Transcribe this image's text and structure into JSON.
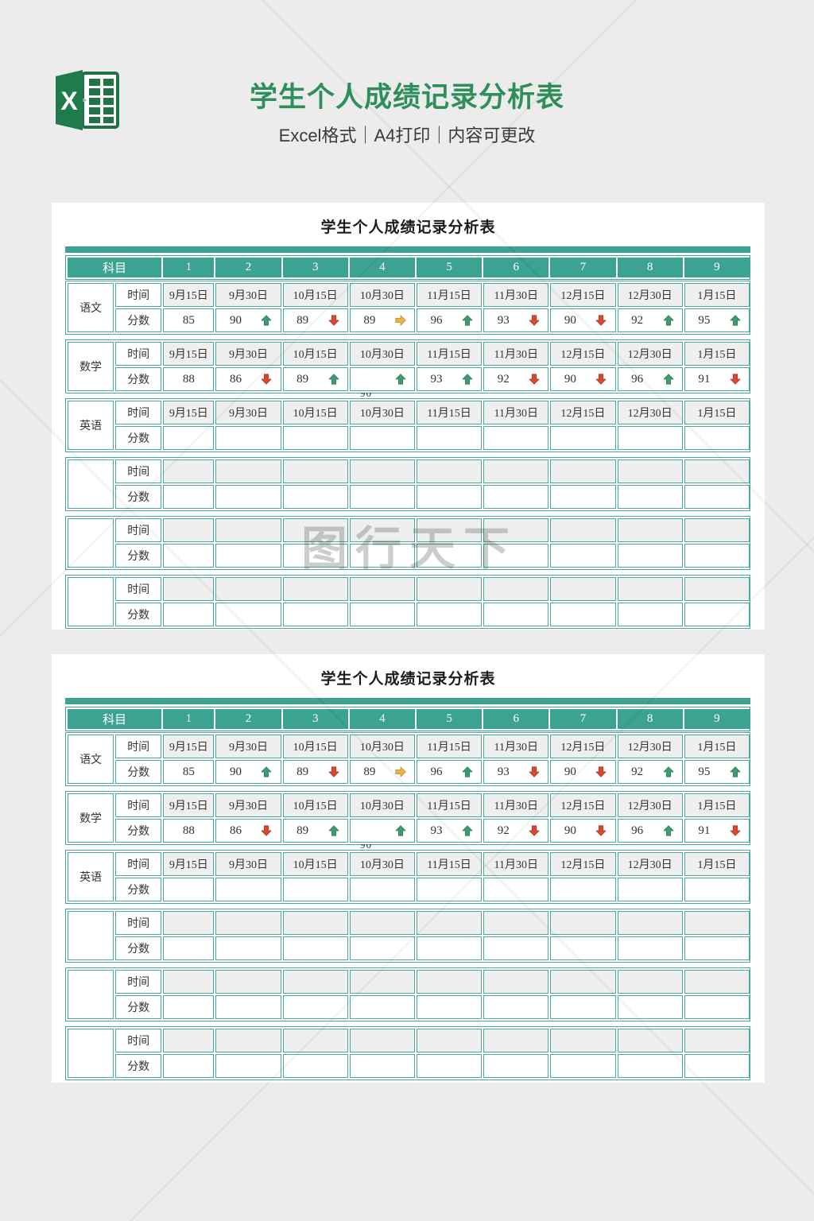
{
  "header": {
    "title": "学生个人成绩记录分析表",
    "subtitle": "Excel格式｜A4打印｜内容可更改",
    "logo_letter": "X"
  },
  "watermark": {
    "text": "图行天下"
  },
  "artifact_text": "90",
  "colors": {
    "accent_teal": "#3ca393",
    "table_border": "#4aa99b",
    "date_cell_fill": "#efefef",
    "title_green": "#2e8f5b",
    "trend_up": "#3e9b72",
    "trend_up_edge": "#2e7d57",
    "trend_down": "#d9472e",
    "trend_down_edge": "#b23620",
    "trend_flat": "#e5b44a",
    "trend_flat_edge": "#c08f2b"
  },
  "table": {
    "title": "学生个人成绩记录分析表",
    "corner_label": "科目",
    "columns": [
      "1",
      "2",
      "3",
      "4",
      "5",
      "6",
      "7",
      "8",
      "9"
    ],
    "row_labels": {
      "time": "时间",
      "score": "分数"
    },
    "dates": [
      "9月15日",
      "9月30日",
      "10月15日",
      "10月30日",
      "11月15日",
      "11月30日",
      "12月15日",
      "12月30日",
      "1月15日"
    ],
    "groups": [
      {
        "subject": "语文",
        "show_dates": true,
        "scores": [
          {
            "value": "85",
            "trend": ""
          },
          {
            "value": "90",
            "trend": "up"
          },
          {
            "value": "89",
            "trend": "down"
          },
          {
            "value": "89",
            "trend": "flat"
          },
          {
            "value": "96",
            "trend": "up"
          },
          {
            "value": "93",
            "trend": "down"
          },
          {
            "value": "90",
            "trend": "down"
          },
          {
            "value": "92",
            "trend": "up"
          },
          {
            "value": "95",
            "trend": "up"
          }
        ]
      },
      {
        "subject": "数学",
        "show_dates": true,
        "scores": [
          {
            "value": "88",
            "trend": ""
          },
          {
            "value": "86",
            "trend": "down"
          },
          {
            "value": "89",
            "trend": "up"
          },
          {
            "value": "",
            "trend": "up"
          },
          {
            "value": "93",
            "trend": "up"
          },
          {
            "value": "92",
            "trend": "down"
          },
          {
            "value": "90",
            "trend": "down"
          },
          {
            "value": "96",
            "trend": "up"
          },
          {
            "value": "91",
            "trend": "down"
          }
        ]
      },
      {
        "subject": "英语",
        "show_dates": true,
        "scores": []
      },
      {
        "subject": "",
        "show_dates": false,
        "scores": []
      },
      {
        "subject": "",
        "show_dates": false,
        "scores": []
      },
      {
        "subject": "",
        "show_dates": false,
        "scores": []
      }
    ]
  }
}
